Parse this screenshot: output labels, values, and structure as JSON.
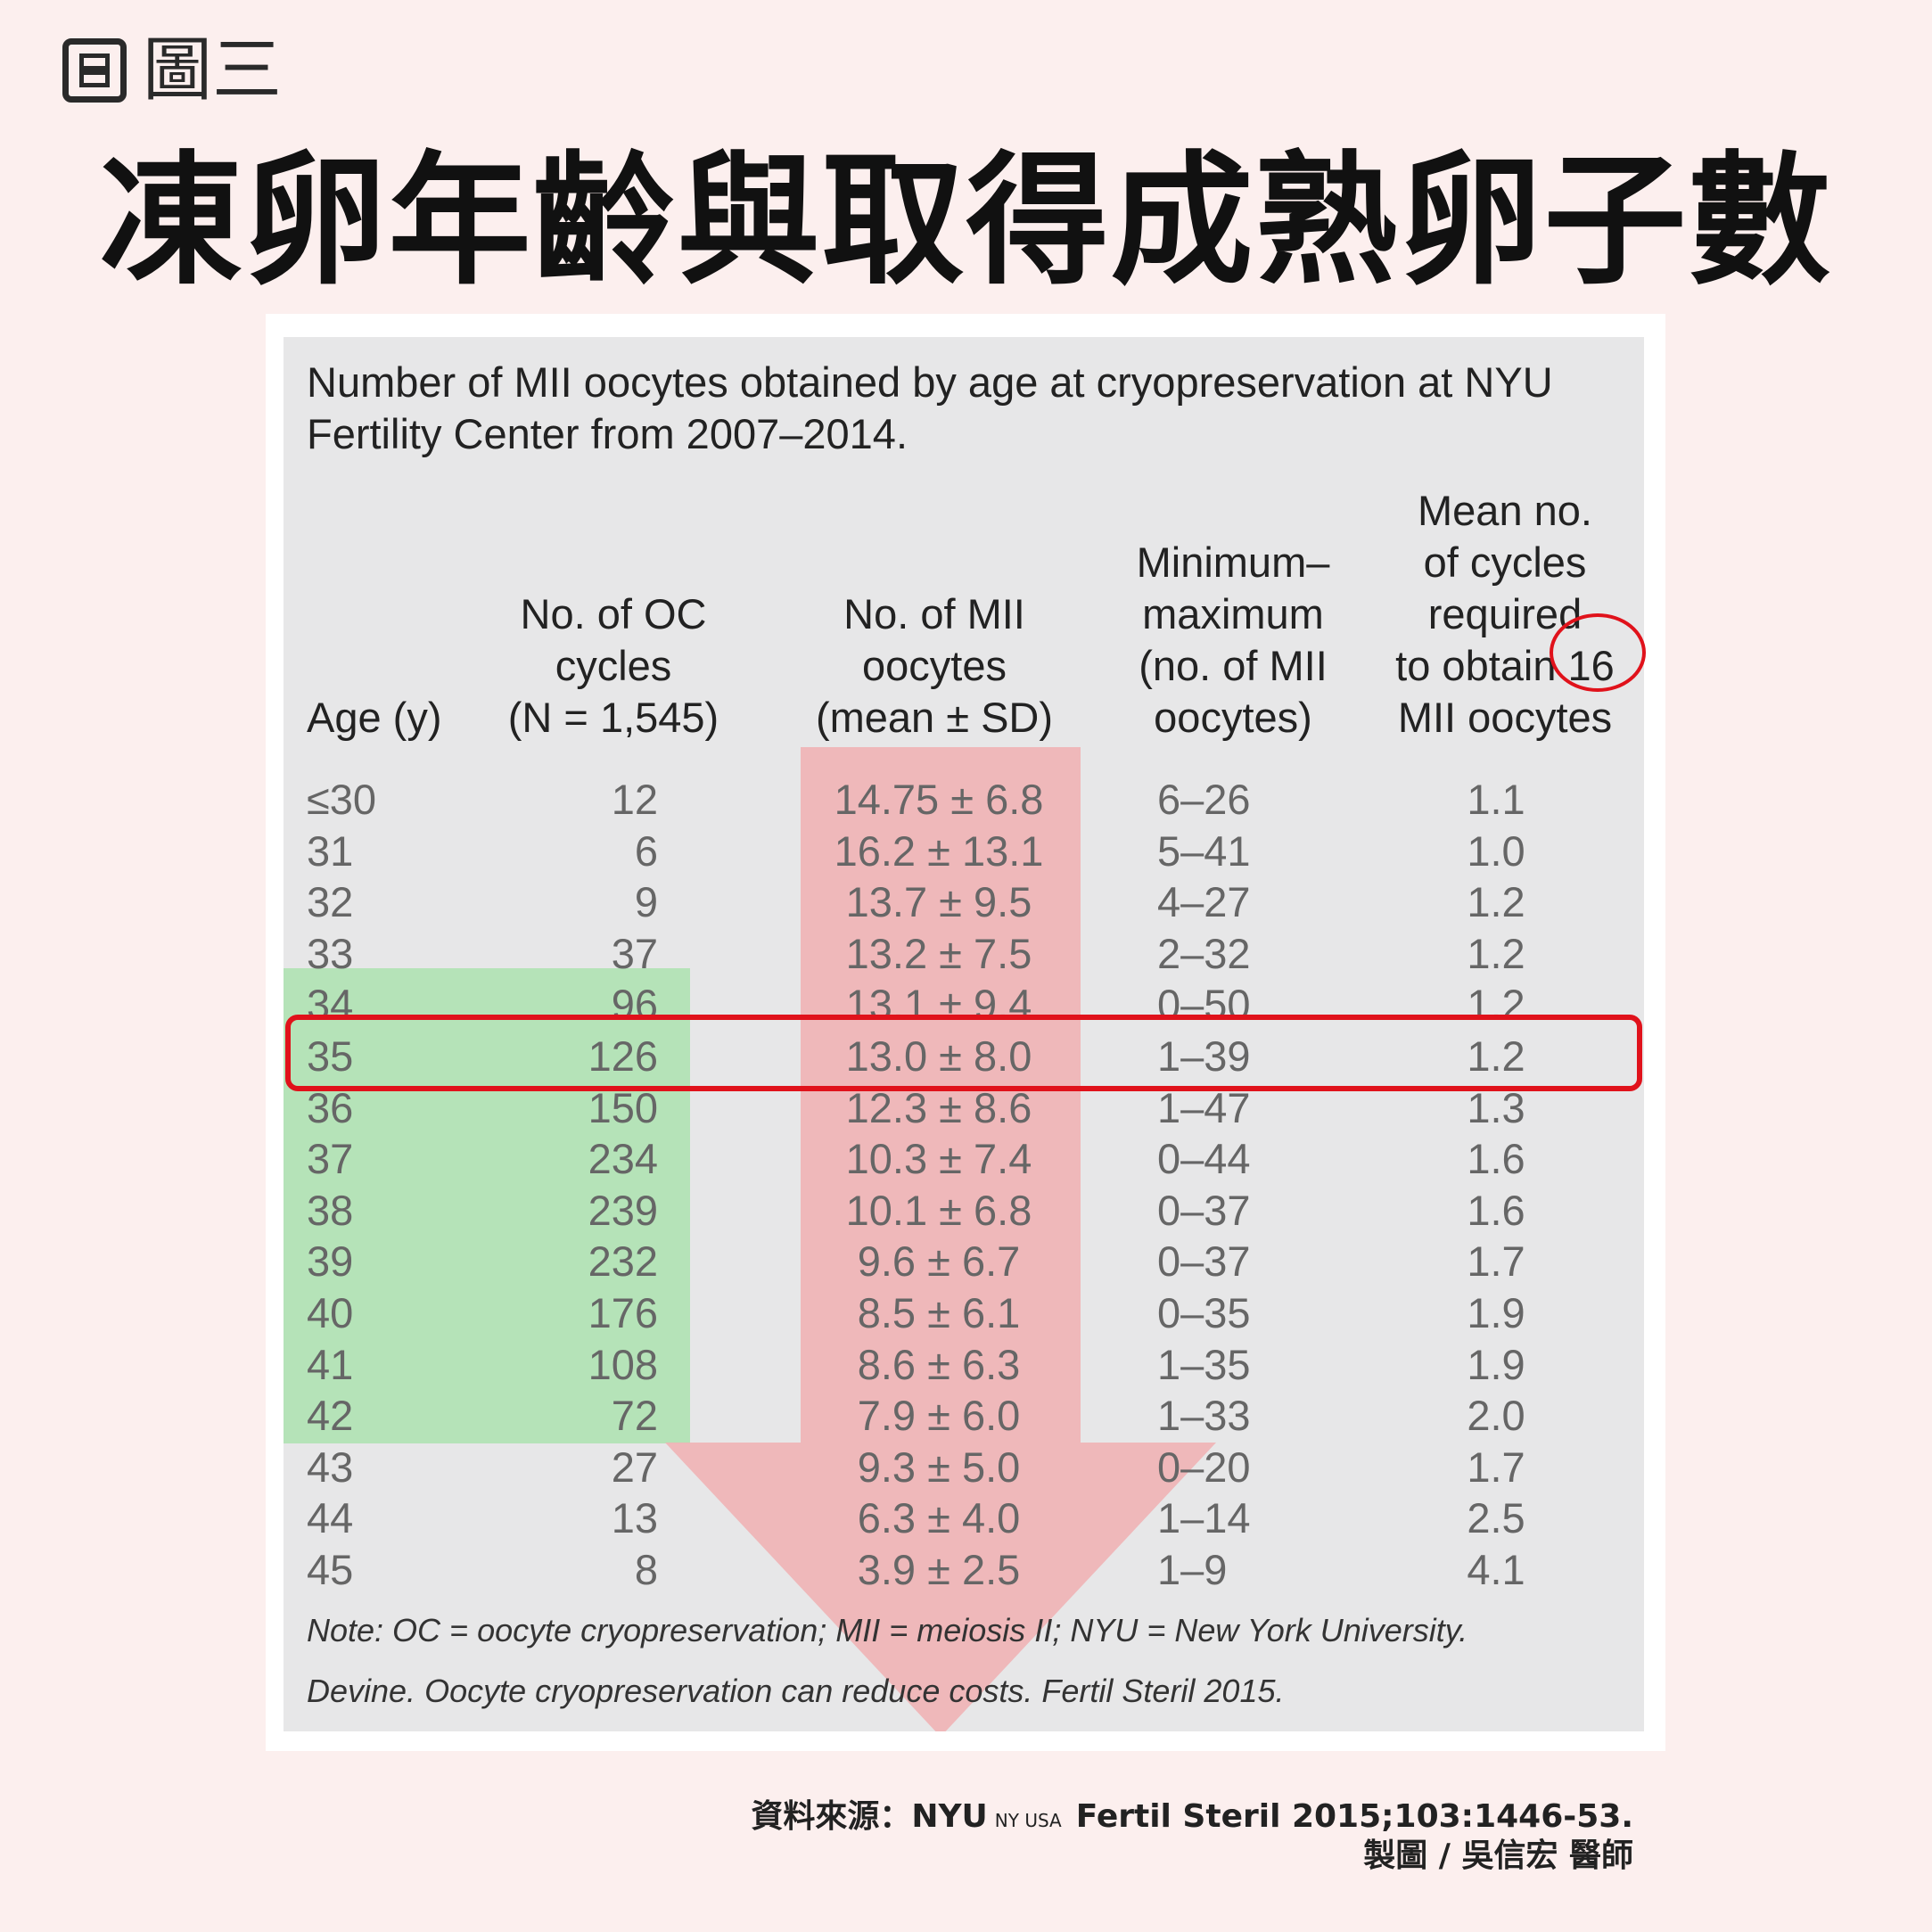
{
  "figure_label": "圖三",
  "title": "凍卵年齡與取得成熟卵子數",
  "table": {
    "caption": "Number of MII oocytes obtained by age at cryopreservation at NYU Fertility Center from 2007–2014.",
    "headers": {
      "age": [
        "Age (y)"
      ],
      "oc_cycles": [
        "No. of OC",
        "cycles",
        "(N = 1,545)"
      ],
      "mii": [
        "No. of MII",
        "oocytes",
        "(mean ± SD)"
      ],
      "minmax": [
        "Minimum–",
        "maximum",
        "(no. of MII",
        "oocytes)"
      ],
      "mean_cycles": [
        "Mean no.",
        "of cycles",
        "required",
        "to obtain 16",
        "MII oocytes"
      ]
    },
    "rows": [
      {
        "age": "≤30",
        "cycles": "12",
        "mii": "14.75 ± 6.8",
        "minmax": "6–26",
        "mean": "1.1"
      },
      {
        "age": "31",
        "cycles": "6",
        "mii": "16.2 ± 13.1",
        "minmax": "5–41",
        "mean": "1.0"
      },
      {
        "age": "32",
        "cycles": "9",
        "mii": "13.7 ± 9.5",
        "minmax": "4–27",
        "mean": "1.2"
      },
      {
        "age": "33",
        "cycles": "37",
        "mii": "13.2 ± 7.5",
        "minmax": "2–32",
        "mean": "1.2"
      },
      {
        "age": "34",
        "cycles": "96",
        "mii": "13.1 ± 9.4",
        "minmax": "0–50",
        "mean": "1.2"
      },
      {
        "age": "35",
        "cycles": "126",
        "mii": "13.0 ± 8.0",
        "minmax": "1–39",
        "mean": "1.2"
      },
      {
        "age": "36",
        "cycles": "150",
        "mii": "12.3 ± 8.6",
        "minmax": "1–47",
        "mean": "1.3"
      },
      {
        "age": "37",
        "cycles": "234",
        "mii": "10.3 ± 7.4",
        "minmax": "0–44",
        "mean": "1.6"
      },
      {
        "age": "38",
        "cycles": "239",
        "mii": "10.1 ± 6.8",
        "minmax": "0–37",
        "mean": "1.6"
      },
      {
        "age": "39",
        "cycles": "232",
        "mii": "9.6 ± 6.7",
        "minmax": "0–37",
        "mean": "1.7"
      },
      {
        "age": "40",
        "cycles": "176",
        "mii": "8.5 ± 6.1",
        "minmax": "0–35",
        "mean": "1.9"
      },
      {
        "age": "41",
        "cycles": "108",
        "mii": "8.6 ± 6.3",
        "minmax": "1–35",
        "mean": "1.9"
      },
      {
        "age": "42",
        "cycles": "72",
        "mii": "7.9 ± 6.0",
        "minmax": "1–33",
        "mean": "2.0"
      },
      {
        "age": "43",
        "cycles": "27",
        "mii": "9.3 ± 5.0",
        "minmax": "0–20",
        "mean": "1.7"
      },
      {
        "age": "44",
        "cycles": "13",
        "mii": "6.3 ± 4.0",
        "minmax": "1–14",
        "mean": "2.5"
      },
      {
        "age": "45",
        "cycles": "8",
        "mii": "3.9 ± 2.5",
        "minmax": "1–9",
        "mean": "4.1"
      }
    ],
    "note": "Note: OC = oocyte cryopreservation; MII = meiosis II; NYU = New York University.",
    "citation": "Devine. Oocyte cryopreservation can reduce costs. Fertil Steril 2015."
  },
  "source": {
    "prefix": "資料來源：NYU",
    "small": "NY USA",
    "ref": "Fertil Steril 2015;103:1446-53."
  },
  "credit": "製圖 / 吳信宏 醫師",
  "colors": {
    "background": "#fcefee",
    "green_highlight": "#b5e3b8",
    "red_arrow": "#f0b3b5",
    "red_outline": "#e0121b"
  }
}
